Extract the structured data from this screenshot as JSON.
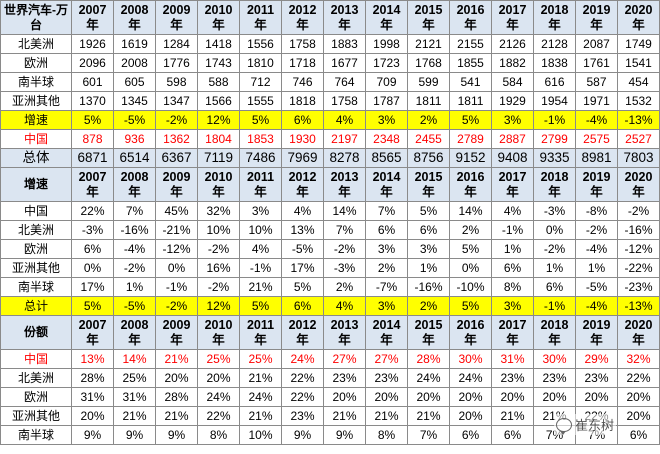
{
  "years": [
    "2007",
    "2008",
    "2009",
    "2010",
    "2011",
    "2012",
    "2013",
    "2014",
    "2015",
    "2016",
    "2017",
    "2018",
    "2019",
    "2020"
  ],
  "year_suffix": "年",
  "sections": [
    {
      "header": "世界汽车-万台",
      "rows": [
        {
          "label": "北美洲",
          "style": "",
          "values": [
            "1926",
            "1619",
            "1284",
            "1418",
            "1556",
            "1758",
            "1883",
            "1998",
            "2121",
            "2155",
            "2126",
            "2128",
            "2087",
            "1749"
          ]
        },
        {
          "label": "欧洲",
          "style": "",
          "values": [
            "2096",
            "2008",
            "1776",
            "1743",
            "1810",
            "1718",
            "1677",
            "1723",
            "1768",
            "1855",
            "1882",
            "1838",
            "1761",
            "1541"
          ]
        },
        {
          "label": "南半球",
          "style": "",
          "values": [
            "601",
            "605",
            "598",
            "588",
            "712",
            "746",
            "764",
            "709",
            "599",
            "541",
            "584",
            "616",
            "587",
            "454"
          ]
        },
        {
          "label": "亚洲其他",
          "style": "",
          "values": [
            "1370",
            "1345",
            "1347",
            "1566",
            "1555",
            "1818",
            "1758",
            "1787",
            "1811",
            "1811",
            "1929",
            "1954",
            "1971",
            "1532"
          ]
        },
        {
          "label": "增速",
          "style": "yellow",
          "values": [
            "5%",
            "-5%",
            "-2%",
            "12%",
            "5%",
            "6%",
            "4%",
            "3%",
            "2%",
            "5%",
            "3%",
            "-1%",
            "-4%",
            "-13%"
          ]
        },
        {
          "label": "中国",
          "style": "red",
          "values": [
            "878",
            "936",
            "1362",
            "1804",
            "1853",
            "1930",
            "2197",
            "2348",
            "2455",
            "2789",
            "2887",
            "2799",
            "2575",
            "2527"
          ]
        },
        {
          "label": "总体",
          "style": "total",
          "values": [
            "6871",
            "6514",
            "6367",
            "7119",
            "7486",
            "7969",
            "8278",
            "8565",
            "8756",
            "9152",
            "9408",
            "9335",
            "8981",
            "7803"
          ]
        }
      ]
    },
    {
      "header": "增速",
      "rows": [
        {
          "label": "中国",
          "style": "",
          "values": [
            "22%",
            "7%",
            "45%",
            "32%",
            "3%",
            "4%",
            "14%",
            "7%",
            "5%",
            "14%",
            "4%",
            "-3%",
            "-8%",
            "-2%"
          ]
        },
        {
          "label": "北美洲",
          "style": "",
          "values": [
            "-3%",
            "-16%",
            "-21%",
            "10%",
            "10%",
            "13%",
            "7%",
            "6%",
            "6%",
            "2%",
            "-1%",
            "0%",
            "-2%",
            "-16%"
          ]
        },
        {
          "label": "欧洲",
          "style": "",
          "values": [
            "6%",
            "-4%",
            "-12%",
            "-2%",
            "4%",
            "-5%",
            "-2%",
            "3%",
            "3%",
            "5%",
            "1%",
            "-2%",
            "-4%",
            "-12%"
          ]
        },
        {
          "label": "亚洲其他",
          "style": "",
          "values": [
            "0%",
            "-2%",
            "0%",
            "16%",
            "-1%",
            "17%",
            "-3%",
            "2%",
            "1%",
            "0%",
            "6%",
            "1%",
            "1%",
            "-22%"
          ]
        },
        {
          "label": "南半球",
          "style": "",
          "values": [
            "17%",
            "1%",
            "-1%",
            "-2%",
            "21%",
            "5%",
            "2%",
            "-7%",
            "-16%",
            "-10%",
            "8%",
            "6%",
            "-5%",
            "-23%"
          ]
        },
        {
          "label": "总计",
          "style": "yellow",
          "values": [
            "5%",
            "-5%",
            "-2%",
            "12%",
            "5%",
            "6%",
            "4%",
            "3%",
            "2%",
            "5%",
            "3%",
            "-1%",
            "-4%",
            "-13%"
          ]
        }
      ]
    },
    {
      "header": "份额",
      "rows": [
        {
          "label": "中国",
          "style": "red",
          "values": [
            "13%",
            "14%",
            "21%",
            "25%",
            "25%",
            "24%",
            "27%",
            "27%",
            "28%",
            "30%",
            "31%",
            "30%",
            "29%",
            "32%"
          ]
        },
        {
          "label": "北美洲",
          "style": "",
          "values": [
            "28%",
            "25%",
            "20%",
            "20%",
            "21%",
            "22%",
            "23%",
            "23%",
            "24%",
            "24%",
            "23%",
            "23%",
            "23%",
            "22%"
          ]
        },
        {
          "label": "欧洲",
          "style": "",
          "values": [
            "31%",
            "31%",
            "28%",
            "24%",
            "24%",
            "22%",
            "20%",
            "20%",
            "20%",
            "20%",
            "20%",
            "20%",
            "20%",
            "20%"
          ]
        },
        {
          "label": "亚洲其他",
          "style": "",
          "values": [
            "20%",
            "21%",
            "21%",
            "22%",
            "21%",
            "23%",
            "21%",
            "21%",
            "21%",
            "20%",
            "21%",
            "21%",
            "22%",
            "20%"
          ]
        },
        {
          "label": "南半球",
          "style": "",
          "values": [
            "9%",
            "9%",
            "9%",
            "8%",
            "10%",
            "9%",
            "9%",
            "8%",
            "7%",
            "6%",
            "6%",
            "7%",
            "7%",
            "6%"
          ]
        }
      ]
    }
  ],
  "watermark": {
    "icon": "wechat-bubble-icon",
    "text": "崔东树"
  }
}
